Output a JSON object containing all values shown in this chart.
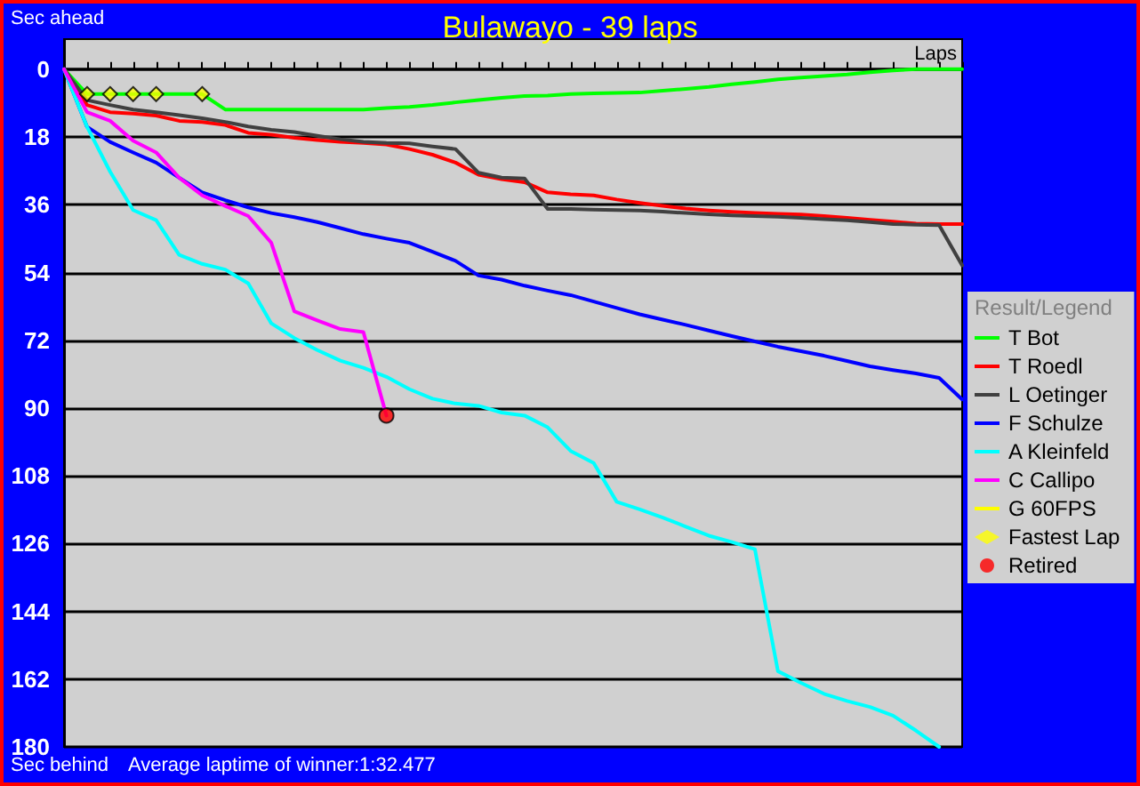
{
  "chart_data": {
    "type": "line",
    "title": "Bulawayo - 39 laps",
    "xlabel": "Laps",
    "legend_title": "Result/Legend",
    "annotations": [
      "Sec ahead",
      "Sec behind",
      "Average laptime of winner:1:32.477"
    ],
    "categories": [
      null,
      null,
      null,
      null,
      null,
      null,
      null,
      null,
      null,
      null,
      null,
      null,
      null,
      null,
      null,
      null,
      null,
      null,
      null,
      null,
      null,
      null,
      null,
      null,
      null,
      null,
      null,
      null,
      null,
      null,
      null,
      null,
      null,
      null,
      null,
      null,
      null,
      null,
      null,
      null
    ],
    "ylim": [
      180,
      -8
    ],
    "yticks": [
      0,
      18,
      36,
      54,
      72,
      90,
      108,
      126,
      144,
      162,
      180
    ],
    "grid": "y",
    "legend": "right",
    "marker": "none",
    "line_style": "solid",
    "series": [
      {
        "name": "T Bot",
        "color": "#00ff00",
        "values": [
          0,
          6.6,
          6.6,
          6.6,
          6.6,
          6.6,
          6.6,
          10.7,
          10.7,
          10.7,
          10.7,
          10.7,
          10.7,
          10.7,
          10.3,
          10,
          9.5,
          8.8,
          8.2,
          7.6,
          7.1,
          7,
          6.6,
          6.4,
          6.3,
          6.2,
          5.7,
          5.2,
          4.7,
          4,
          3.4,
          2.7,
          2.2,
          1.8,
          1.4,
          0.8,
          0.3,
          0,
          0,
          0
        ]
      },
      {
        "name": "T Roedl",
        "color": "#ff0000",
        "values": [
          0,
          9.5,
          11.4,
          11.8,
          12.3,
          13.7,
          14,
          14.8,
          16.9,
          17.4,
          18.2,
          18.8,
          19.3,
          19.6,
          20,
          21.2,
          22.7,
          24.8,
          28,
          29.2,
          30,
          32.7,
          33.2,
          33.5,
          34.6,
          35.5,
          36.3,
          37,
          37.5,
          37.9,
          38.2,
          38.4,
          38.6,
          39,
          39.5,
          40,
          40.5,
          41,
          41.1,
          41.1
        ]
      },
      {
        "name": "L Oetinger",
        "color": "#404040",
        "values": [
          0,
          8.2,
          9.5,
          10.7,
          11.4,
          12.2,
          13,
          14,
          15.2,
          16.1,
          16.7,
          17.7,
          18.6,
          19.3,
          19.6,
          19.7,
          20.5,
          21.2,
          27.5,
          28.8,
          29,
          37.1,
          37.1,
          37.3,
          37.4,
          37.5,
          37.8,
          38.2,
          38.5,
          38.8,
          39,
          39.2,
          39.5,
          39.8,
          40.1,
          40.6,
          41.1,
          41.3,
          41.4,
          52.1
        ]
      },
      {
        "name": "F Schulze",
        "color": "#0000ff",
        "values": [
          0,
          15.3,
          19.3,
          22.1,
          24.8,
          28.8,
          32.7,
          34.8,
          36.7,
          38.2,
          39.3,
          40.6,
          42.2,
          43.8,
          45,
          46.1,
          48.5,
          50.9,
          54.8,
          55.9,
          57.5,
          58.8,
          60,
          61.7,
          63.4,
          65.1,
          66.5,
          67.9,
          69.4,
          70.9,
          72.3,
          73.7,
          74.9,
          76.1,
          77.5,
          78.9,
          79.9,
          80.8,
          82,
          87.7
        ]
      },
      {
        "name": "A Kleinfeld",
        "color": "#00ffff",
        "values": [
          0,
          15.3,
          27.2,
          37.4,
          40.1,
          49.3,
          51.7,
          53.2,
          56.9,
          67.5,
          71.4,
          74.6,
          77.4,
          79.3,
          81.7,
          85,
          87.5,
          88.8,
          89.4,
          91.2,
          92,
          95.1,
          101.4,
          104.6,
          114.9,
          116.9,
          119.1,
          121.5,
          123.9,
          125.6,
          127.5,
          159.9,
          163,
          165.9,
          167.8,
          169.4,
          171.7,
          175.7,
          180,
          null
        ]
      },
      {
        "name": "C Callipo",
        "color": "#ff00ff",
        "values": [
          0,
          11.4,
          13.7,
          19,
          22.1,
          28.8,
          33.5,
          36.3,
          39,
          46.1,
          64.3,
          66.7,
          69,
          69.8,
          92,
          null,
          null,
          null,
          null,
          null,
          null,
          null,
          null,
          null,
          null,
          null,
          null,
          null,
          null,
          null,
          null,
          null,
          null,
          null,
          null,
          null,
          null,
          null,
          null,
          null
        ]
      },
      {
        "name": "G 60FPS",
        "color": "#ffff00",
        "values": [
          null,
          null,
          null,
          null,
          null,
          null,
          null,
          null,
          null,
          null,
          null,
          null,
          null,
          null,
          null,
          null,
          null,
          null,
          null,
          null,
          null,
          null,
          null,
          null,
          null,
          null,
          null,
          null,
          null,
          null,
          null,
          null,
          null,
          null,
          null,
          null,
          null,
          null,
          null,
          null
        ]
      },
      {
        "name": "Fastest Lap",
        "type": "scatter",
        "marker": "diamond",
        "color": "#ffff00",
        "values": [
          null,
          6.6,
          6.6,
          6.6,
          6.6,
          null,
          6.6,
          null,
          null,
          null,
          null,
          null,
          null,
          null,
          null,
          null,
          null,
          null,
          null,
          null,
          null,
          null,
          null,
          null,
          null,
          null,
          null,
          null,
          null,
          null,
          null,
          null,
          null,
          null,
          null,
          null,
          null,
          null,
          null,
          null
        ]
      },
      {
        "name": "Retired",
        "type": "scatter",
        "marker": "circle",
        "color": "#ff0000",
        "values": [
          null,
          null,
          null,
          null,
          null,
          null,
          null,
          null,
          null,
          null,
          null,
          null,
          null,
          null,
          92,
          null,
          null,
          null,
          null,
          null,
          null,
          null,
          null,
          null,
          null,
          null,
          null,
          null,
          null,
          null,
          null,
          null,
          null,
          null,
          null,
          null,
          null,
          null,
          null,
          null
        ]
      }
    ]
  }
}
